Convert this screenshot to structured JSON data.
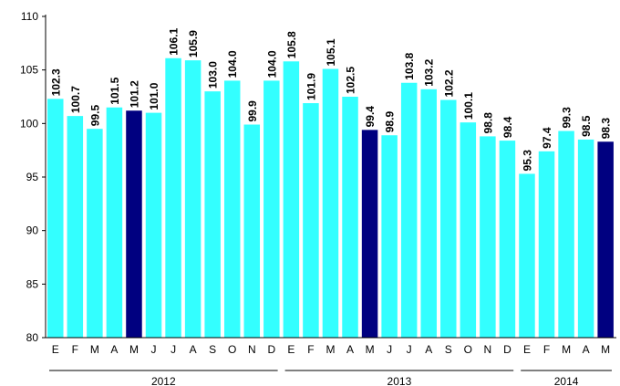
{
  "chart_data": {
    "type": "bar",
    "ylim": [
      80,
      110
    ],
    "yticks": [
      80,
      85,
      90,
      95,
      100,
      105,
      110
    ],
    "grid": false,
    "colors": {
      "normal": "#33FFFF",
      "highlight": "#000080",
      "axis": "#000000"
    },
    "categories": [
      "E",
      "F",
      "M",
      "A",
      "M",
      "J",
      "J",
      "A",
      "S",
      "O",
      "N",
      "D",
      "E",
      "F",
      "M",
      "A",
      "M",
      "J",
      "J",
      "A",
      "S",
      "O",
      "N",
      "D",
      "E",
      "F",
      "M",
      "A",
      "M"
    ],
    "values": [
      102.3,
      100.7,
      99.5,
      101.5,
      101.2,
      101.0,
      106.1,
      105.9,
      103.0,
      104.0,
      99.9,
      104.0,
      105.8,
      101.9,
      105.1,
      102.5,
      99.4,
      98.9,
      103.8,
      103.2,
      102.2,
      100.1,
      98.8,
      98.4,
      95.3,
      97.4,
      99.3,
      98.5,
      98.3
    ],
    "value_labels": [
      "102.3",
      "100.7",
      "99.5",
      "101.5",
      "101.2",
      "101.0",
      "106.1",
      "105.9",
      "103.0",
      "104.0",
      "99.9",
      "104.0",
      "105.8",
      "101.9",
      "105.1",
      "102.5",
      "99.4",
      "98.9",
      "103.8",
      "103.2",
      "102.2",
      "100.1",
      "98.8",
      "98.4",
      "95.3",
      "97.4",
      "99.3",
      "98.5",
      "98.3"
    ],
    "highlighted_indices": [
      4,
      16,
      28
    ],
    "groups": [
      {
        "label": "2012",
        "start": 0,
        "end": 11
      },
      {
        "label": "2013",
        "start": 12,
        "end": 23
      },
      {
        "label": "2014",
        "start": 24,
        "end": 28
      }
    ]
  }
}
